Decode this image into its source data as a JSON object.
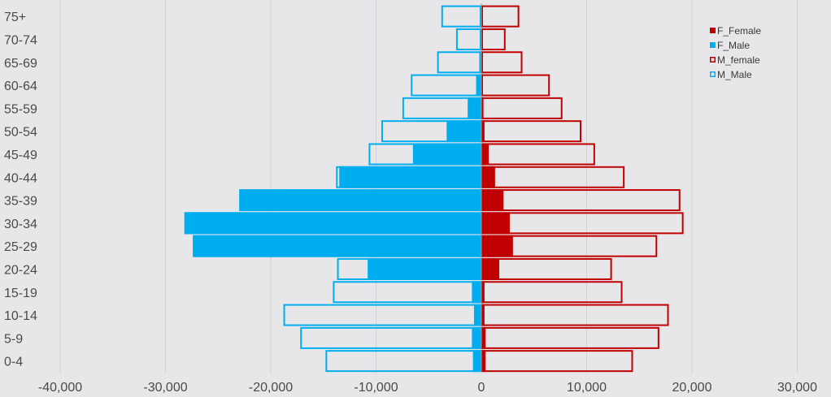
{
  "chart_data": {
    "type": "bar",
    "orientation": "horizontal",
    "subtype": "population-pyramid (overlapping bars)",
    "categories": [
      "75+",
      "70-74",
      "65-69",
      "60-64",
      "55-59",
      "50-54",
      "45-49",
      "40-44",
      "35-39",
      "30-34",
      "25-29",
      "20-24",
      "15-19",
      "10-14",
      "5-9",
      "0-4"
    ],
    "series": [
      {
        "name": "F_Female",
        "style": "filled",
        "color": "#c00000",
        "values": [
          150,
          150,
          150,
          150,
          200,
          300,
          700,
          1300,
          2100,
          2700,
          3000,
          1700,
          300,
          300,
          400,
          400
        ]
      },
      {
        "name": "F_Male",
        "style": "filled",
        "color": "#00aeef",
        "values": [
          -50,
          -100,
          -200,
          -500,
          -1300,
          -3300,
          -6500,
          -13500,
          -23000,
          -28200,
          -27400,
          -10800,
          -900,
          -700,
          -900,
          -800
        ]
      },
      {
        "name": "M_female",
        "style": "outline",
        "color": "#c00000",
        "values": [
          3600,
          2300,
          3900,
          6500,
          7700,
          9500,
          10800,
          13600,
          18900,
          19200,
          16700,
          12400,
          13400,
          17800,
          16900,
          14400
        ]
      },
      {
        "name": "M_Male",
        "style": "outline",
        "color": "#00aeef",
        "values": [
          -3800,
          -2400,
          -4200,
          -6700,
          -7500,
          -9500,
          -10700,
          -13800,
          -19200,
          -28200,
          -27400,
          -13700,
          -14100,
          -18800,
          -17200,
          -14800
        ]
      }
    ],
    "x_ticks": [
      "-40,000",
      "-30,000",
      "-20,000",
      "-10,000",
      "0",
      "10,000",
      "20,000",
      "30,000"
    ],
    "x_tick_values": [
      -40000,
      -30000,
      -20000,
      -10000,
      0,
      10000,
      20000,
      30000
    ],
    "xlim": [
      -40000,
      30000
    ],
    "xlabel": "",
    "ylabel": "",
    "title": "",
    "grid": "vertical",
    "legend_position": "top-right"
  },
  "colors": {
    "background": "#e7e7e9",
    "grid": "#d0d0d4",
    "female": "#c00000",
    "male": "#00aeef"
  }
}
